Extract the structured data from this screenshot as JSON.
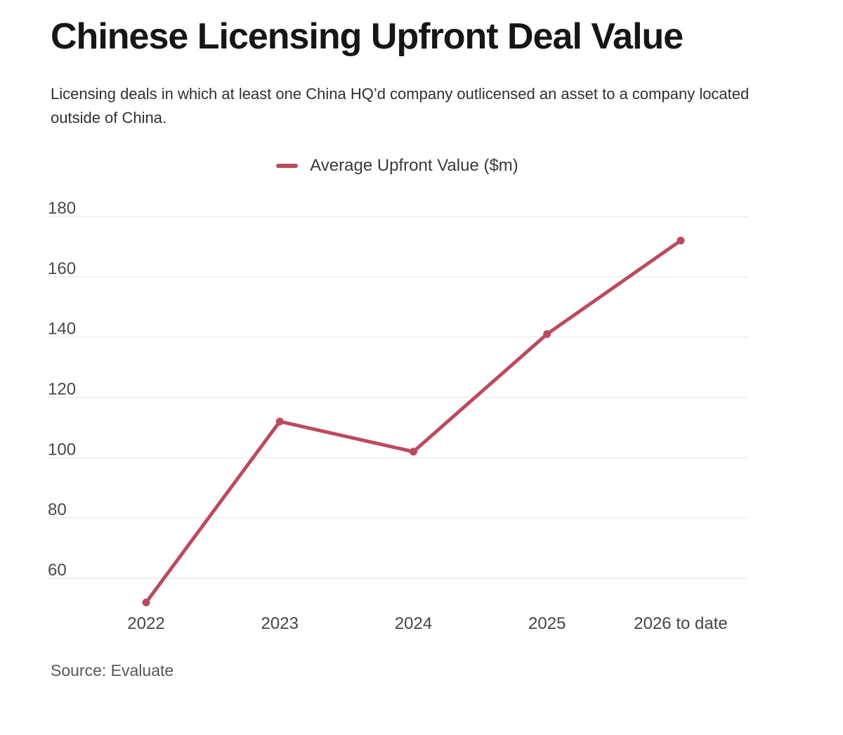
{
  "header": {
    "title": "Chinese Licensing Upfront Deal Value",
    "subtitle": "Licensing deals in which at least one China HQ’d company outlicensed an asset to a company located outside of China."
  },
  "legend": {
    "label": "Average Upfront Value ($m)",
    "marker": "line-swatch"
  },
  "chart_data": {
    "type": "line",
    "title": "Chinese Licensing Upfront Deal Value",
    "categories": [
      "2022",
      "2023",
      "2024",
      "2025",
      "2026 to date"
    ],
    "series": [
      {
        "name": "Average Upfront Value ($m)",
        "values": [
          52,
          112,
          102,
          141,
          172
        ],
        "color": "#bc4a5e"
      }
    ],
    "xlabel": "",
    "ylabel": "",
    "yticks": [
      60,
      80,
      100,
      120,
      140,
      160,
      180
    ],
    "ylim": [
      48,
      184
    ],
    "grid": "horizontal",
    "legend_position": "top-center",
    "point_markers": true
  },
  "footer": {
    "source": "Source: Evaluate"
  },
  "colors": {
    "accent": "#bc4a5e",
    "grid": "#ececec",
    "title_text": "#161616",
    "subtitle_text": "#303030",
    "tick_text": "#4a4a4a",
    "source_text": "#575757",
    "background": "#ffffff"
  }
}
